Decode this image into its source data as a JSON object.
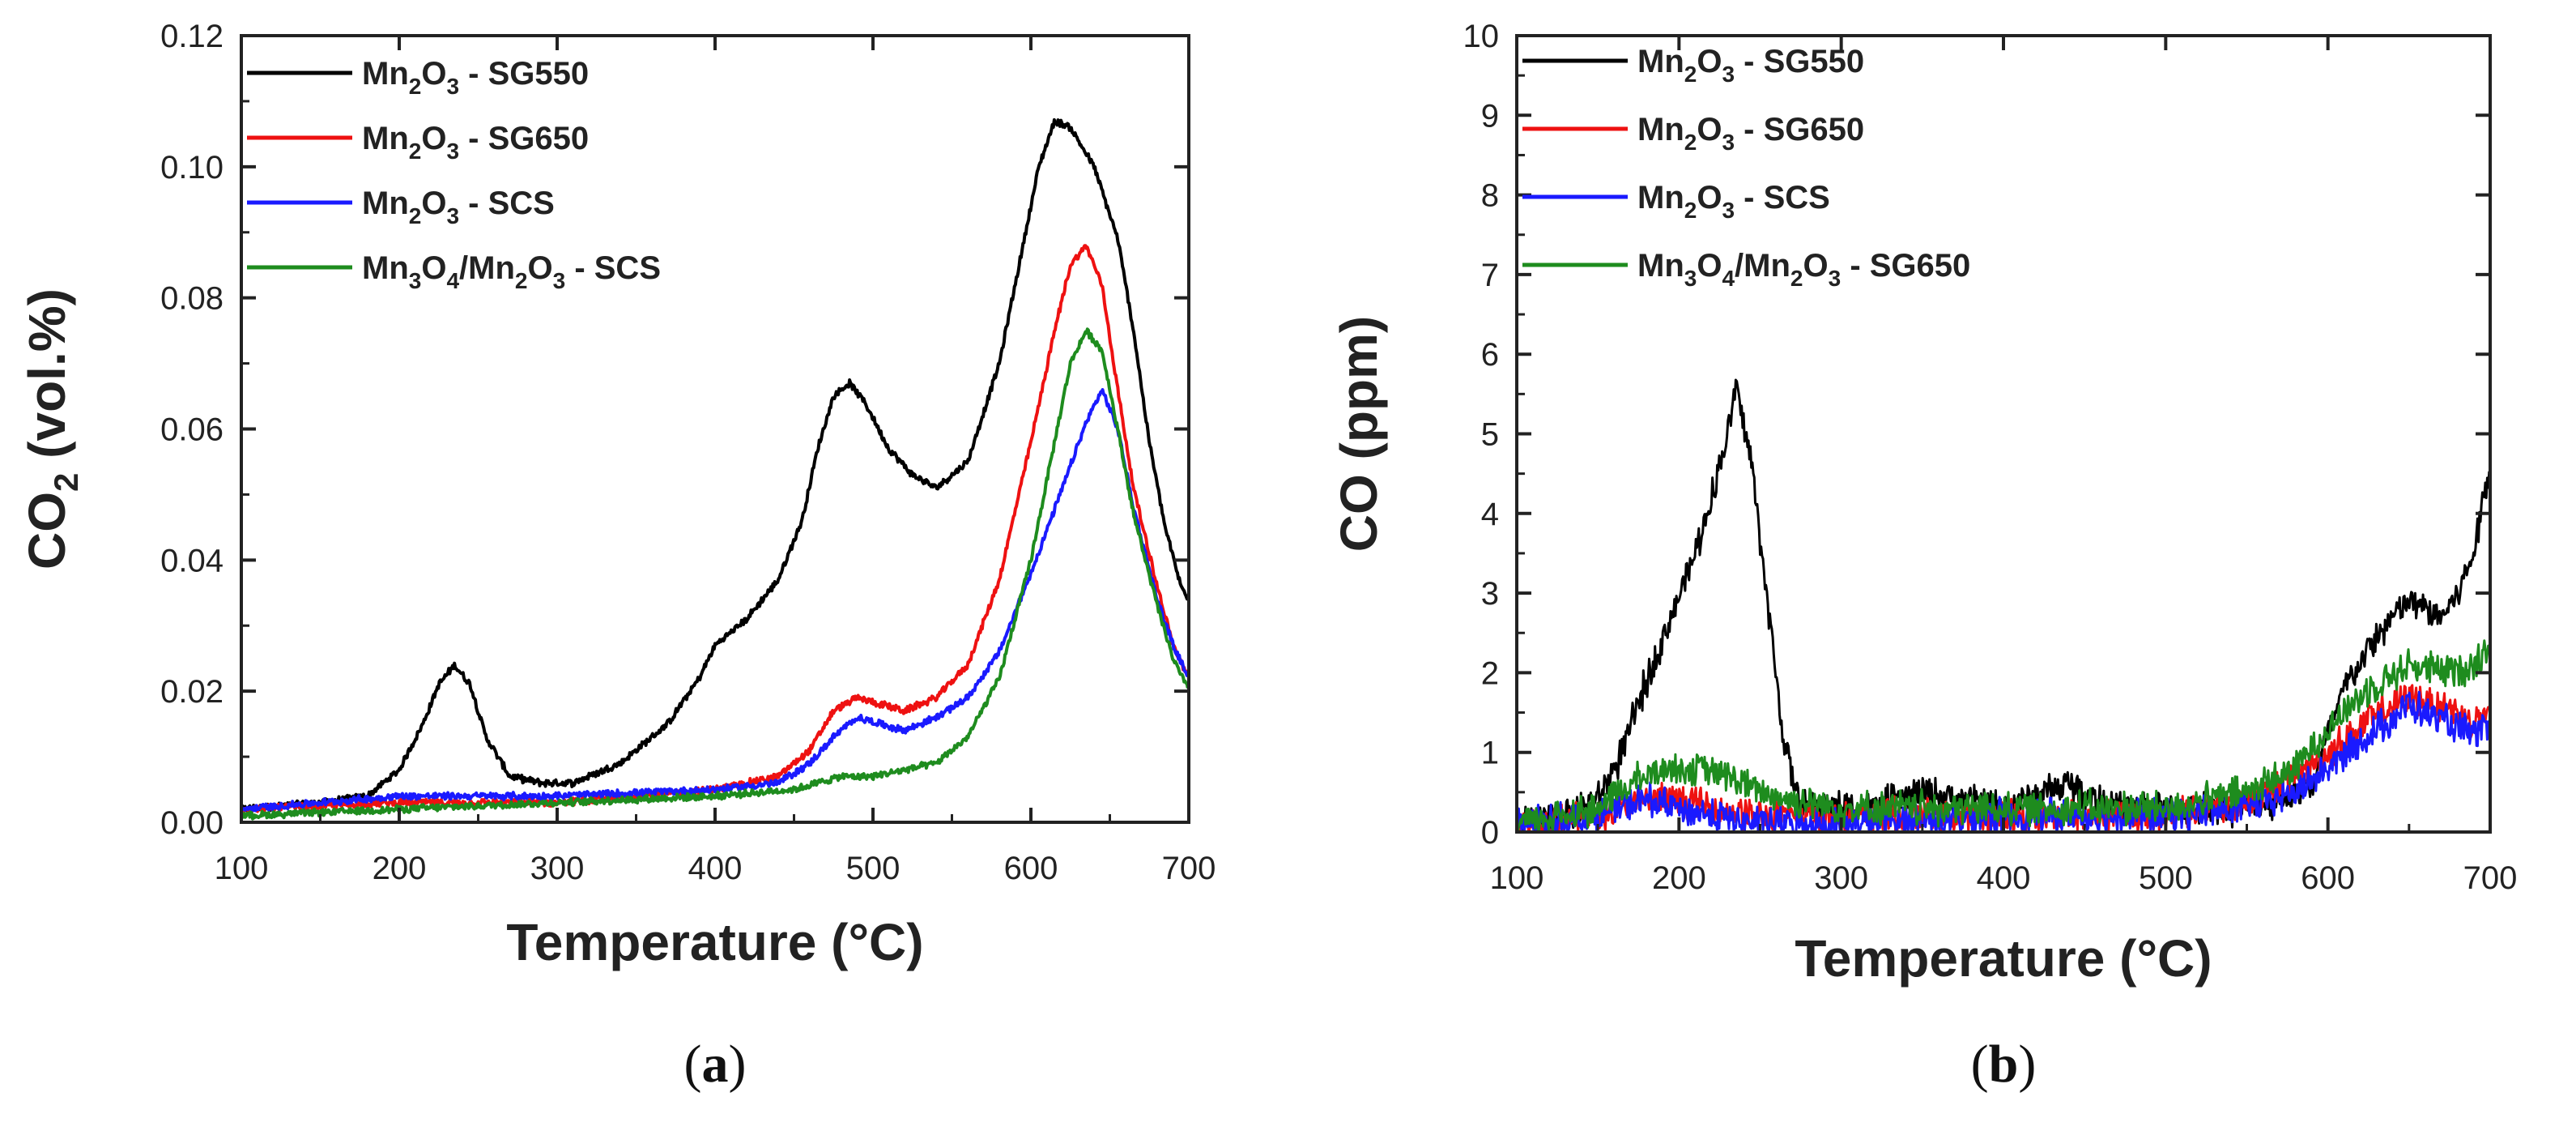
{
  "chart_data": [
    {
      "type": "line",
      "panel": "a",
      "caption": "(a)",
      "xlabel": "Temperature (°C)",
      "ylabel": "CO2 (vol.%)",
      "ylabel_parts": {
        "main": "CO",
        "sub": "2",
        "rest": " (vol.%)"
      },
      "xlim": [
        100,
        700
      ],
      "ylim": [
        0,
        0.12
      ],
      "xticks": [
        "100",
        "200",
        "300",
        "400",
        "500",
        "600",
        "700"
      ],
      "yticks": [
        "0.00",
        "0.02",
        "0.04",
        "0.06",
        "0.08",
        "0.10",
        "0.12"
      ],
      "legend_position": "top-left",
      "series": [
        {
          "name": "Mn2O3 - SG550",
          "label_parts": [
            {
              "t": "Mn"
            },
            {
              "t": "2",
              "sub": true
            },
            {
              "t": "O"
            },
            {
              "t": "3",
              "sub": true
            },
            {
              "t": " - SG550"
            }
          ],
          "color": "#000000",
          "x": [
            100,
            150,
            180,
            200,
            215,
            225,
            235,
            245,
            255,
            270,
            290,
            310,
            340,
            370,
            390,
            400,
            420,
            440,
            455,
            465,
            475,
            485,
            495,
            510,
            525,
            540,
            560,
            580,
            595,
            605,
            615,
            625,
            640,
            655,
            665,
            675,
            685,
            695,
            700
          ],
          "y": [
            0.002,
            0.003,
            0.004,
            0.008,
            0.015,
            0.021,
            0.024,
            0.021,
            0.013,
            0.007,
            0.006,
            0.006,
            0.009,
            0.015,
            0.022,
            0.027,
            0.031,
            0.037,
            0.046,
            0.057,
            0.065,
            0.067,
            0.064,
            0.057,
            0.053,
            0.051,
            0.055,
            0.07,
            0.088,
            0.1,
            0.107,
            0.106,
            0.1,
            0.089,
            0.075,
            0.058,
            0.045,
            0.036,
            0.034
          ]
        },
        {
          "name": "Mn2O3 - SG650",
          "label_parts": [
            {
              "t": "Mn"
            },
            {
              "t": "2",
              "sub": true
            },
            {
              "t": "O"
            },
            {
              "t": "3",
              "sub": true
            },
            {
              "t": " - SG650"
            }
          ],
          "color": "#ee1111",
          "x": [
            100,
            200,
            300,
            400,
            440,
            460,
            475,
            490,
            505,
            520,
            540,
            560,
            580,
            600,
            615,
            625,
            635,
            645,
            655,
            665,
            680,
            690,
            700
          ],
          "y": [
            0.002,
            0.003,
            0.003,
            0.005,
            0.007,
            0.011,
            0.017,
            0.019,
            0.018,
            0.017,
            0.019,
            0.024,
            0.037,
            0.058,
            0.075,
            0.085,
            0.088,
            0.082,
            0.066,
            0.051,
            0.036,
            0.027,
            0.022
          ]
        },
        {
          "name": "Mn2O3 - SCS",
          "label_parts": [
            {
              "t": "Mn"
            },
            {
              "t": "2",
              "sub": true
            },
            {
              "t": "O"
            },
            {
              "t": "3",
              "sub": true
            },
            {
              "t": " - SCS"
            }
          ],
          "color": "#1a1aff",
          "x": [
            100,
            200,
            300,
            400,
            440,
            460,
            475,
            490,
            505,
            520,
            540,
            560,
            580,
            600,
            620,
            635,
            645,
            655,
            665,
            680,
            690,
            700
          ],
          "y": [
            0.002,
            0.004,
            0.004,
            0.005,
            0.006,
            0.009,
            0.013,
            0.016,
            0.015,
            0.014,
            0.016,
            0.019,
            0.026,
            0.038,
            0.051,
            0.061,
            0.066,
            0.06,
            0.048,
            0.034,
            0.027,
            0.022
          ]
        },
        {
          "name": "Mn3O4/Mn2O3 - SCS",
          "label_parts": [
            {
              "t": "Mn"
            },
            {
              "t": "3",
              "sub": true
            },
            {
              "t": "O"
            },
            {
              "t": "4",
              "sub": true
            },
            {
              "t": "/Mn"
            },
            {
              "t": "2",
              "sub": true
            },
            {
              "t": "O"
            },
            {
              "t": "3",
              "sub": true
            },
            {
              "t": " - SCS"
            }
          ],
          "color": "#1e8c1e",
          "x": [
            100,
            200,
            300,
            400,
            450,
            480,
            500,
            520,
            540,
            560,
            580,
            600,
            615,
            625,
            635,
            645,
            655,
            665,
            680,
            690,
            700
          ],
          "y": [
            0.001,
            0.002,
            0.003,
            0.004,
            0.005,
            0.007,
            0.007,
            0.008,
            0.009,
            0.013,
            0.022,
            0.04,
            0.058,
            0.07,
            0.075,
            0.072,
            0.06,
            0.047,
            0.033,
            0.025,
            0.02
          ]
        }
      ]
    },
    {
      "type": "line",
      "panel": "b",
      "caption": "(b)",
      "xlabel": "Temperature (°C)",
      "ylabel": "CO (ppm)",
      "xlim": [
        100,
        700
      ],
      "ylim": [
        0,
        10
      ],
      "xticks": [
        "100",
        "200",
        "300",
        "400",
        "500",
        "600",
        "700"
      ],
      "yticks": [
        "0",
        "1",
        "2",
        "3",
        "4",
        "5",
        "6",
        "7",
        "8",
        "9",
        "10"
      ],
      "legend_position": "top-left",
      "series": [
        {
          "name": "Mn2O3 - SG550",
          "label_parts": [
            {
              "t": "Mn"
            },
            {
              "t": "2",
              "sub": true
            },
            {
              "t": "O"
            },
            {
              "t": "3",
              "sub": true
            },
            {
              "t": " - SG550"
            }
          ],
          "color": "#000000",
          "x": [
            100,
            130,
            150,
            165,
            180,
            195,
            210,
            220,
            230,
            235,
            245,
            255,
            265,
            275,
            290,
            320,
            350,
            400,
            440,
            470,
            500,
            540,
            570,
            590,
            600,
            610,
            625,
            640,
            650,
            660,
            670,
            680,
            690,
            700
          ],
          "y": [
            0.1,
            0.2,
            0.4,
            1.0,
            1.9,
            2.7,
            3.5,
            4.2,
            5.0,
            5.6,
            4.6,
            2.8,
            1.1,
            0.3,
            0.3,
            0.3,
            0.5,
            0.3,
            0.6,
            0.3,
            0.3,
            0.3,
            0.4,
            0.6,
            1.2,
            1.8,
            2.3,
            2.7,
            2.9,
            2.8,
            2.7,
            3.0,
            3.5,
            4.7
          ]
        },
        {
          "name": "Mn2O3 - SG650",
          "label_parts": [
            {
              "t": "Mn"
            },
            {
              "t": "2",
              "sub": true
            },
            {
              "t": "O"
            },
            {
              "t": "3",
              "sub": true
            },
            {
              "t": " - SG650"
            }
          ],
          "color": "#ee1111",
          "x": [
            100,
            150,
            180,
            200,
            220,
            250,
            300,
            400,
            500,
            550,
            580,
            600,
            625,
            650,
            670,
            690,
            700
          ],
          "y": [
            0.1,
            0.2,
            0.4,
            0.4,
            0.3,
            0.2,
            0.2,
            0.2,
            0.2,
            0.4,
            0.7,
            1.0,
            1.4,
            1.7,
            1.6,
            1.4,
            1.5
          ]
        },
        {
          "name": "Mn2O3 - SCS",
          "label_parts": [
            {
              "t": "Mn"
            },
            {
              "t": "2",
              "sub": true
            },
            {
              "t": "O"
            },
            {
              "t": "3",
              "sub": true
            },
            {
              "t": " - SCS"
            }
          ],
          "color": "#1a1aff",
          "x": [
            100,
            150,
            180,
            200,
            220,
            250,
            300,
            400,
            500,
            550,
            580,
            600,
            625,
            650,
            670,
            690,
            700
          ],
          "y": [
            0.1,
            0.2,
            0.4,
            0.3,
            0.2,
            0.1,
            0.1,
            0.2,
            0.2,
            0.3,
            0.5,
            0.8,
            1.2,
            1.6,
            1.4,
            1.2,
            1.3
          ]
        },
        {
          "name": "Mn3O4/Mn2O3 - SG650",
          "label_parts": [
            {
              "t": "Mn"
            },
            {
              "t": "3",
              "sub": true
            },
            {
              "t": "O"
            },
            {
              "t": "4",
              "sub": true
            },
            {
              "t": "/Mn"
            },
            {
              "t": "2",
              "sub": true
            },
            {
              "t": "O"
            },
            {
              "t": "3",
              "sub": true
            },
            {
              "t": " - SG650"
            }
          ],
          "color": "#1e8c1e",
          "x": [
            100,
            150,
            170,
            190,
            210,
            230,
            250,
            270,
            300,
            400,
            500,
            550,
            580,
            600,
            625,
            650,
            670,
            690,
            700
          ],
          "y": [
            0.1,
            0.3,
            0.6,
            0.8,
            0.8,
            0.7,
            0.5,
            0.4,
            0.3,
            0.3,
            0.3,
            0.5,
            0.8,
            1.3,
            1.8,
            2.1,
            2.0,
            2.1,
            2.4
          ]
        }
      ]
    }
  ]
}
